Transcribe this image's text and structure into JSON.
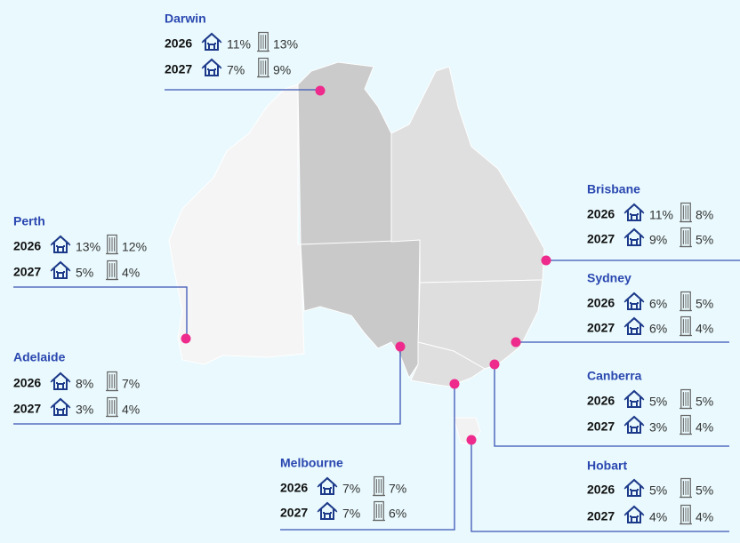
{
  "cities": [
    {
      "name": "Darwin",
      "rows": [
        {
          "year": "2026",
          "house": "11%",
          "unit": "13%"
        },
        {
          "year": "2027",
          "house": "7%",
          "unit": "9%"
        }
      ]
    },
    {
      "name": "Perth",
      "rows": [
        {
          "year": "2026",
          "house": "13%",
          "unit": "12%"
        },
        {
          "year": "2027",
          "house": "5%",
          "unit": "4%"
        }
      ]
    },
    {
      "name": "Adelaide",
      "rows": [
        {
          "year": "2026",
          "house": "8%",
          "unit": "7%"
        },
        {
          "year": "2027",
          "house": "3%",
          "unit": "4%"
        }
      ]
    },
    {
      "name": "Melbourne",
      "rows": [
        {
          "year": "2026",
          "house": "7%",
          "unit": "7%"
        },
        {
          "year": "2027",
          "house": "7%",
          "unit": "6%"
        }
      ]
    },
    {
      "name": "Brisbane",
      "rows": [
        {
          "year": "2026",
          "house": "11%",
          "unit": "8%"
        },
        {
          "year": "2027",
          "house": "9%",
          "unit": "5%"
        }
      ]
    },
    {
      "name": "Sydney",
      "rows": [
        {
          "year": "2026",
          "house": "6%",
          "unit": "5%"
        },
        {
          "year": "2027",
          "house": "6%",
          "unit": "4%"
        }
      ]
    },
    {
      "name": "Canberra",
      "rows": [
        {
          "year": "2026",
          "house": "5%",
          "unit": "5%"
        },
        {
          "year": "2027",
          "house": "3%",
          "unit": "4%"
        }
      ]
    },
    {
      "name": "Hobart",
      "rows": [
        {
          "year": "2026",
          "house": "5%",
          "unit": "5%"
        },
        {
          "year": "2027",
          "house": "4%",
          "unit": "4%"
        }
      ]
    }
  ]
}
